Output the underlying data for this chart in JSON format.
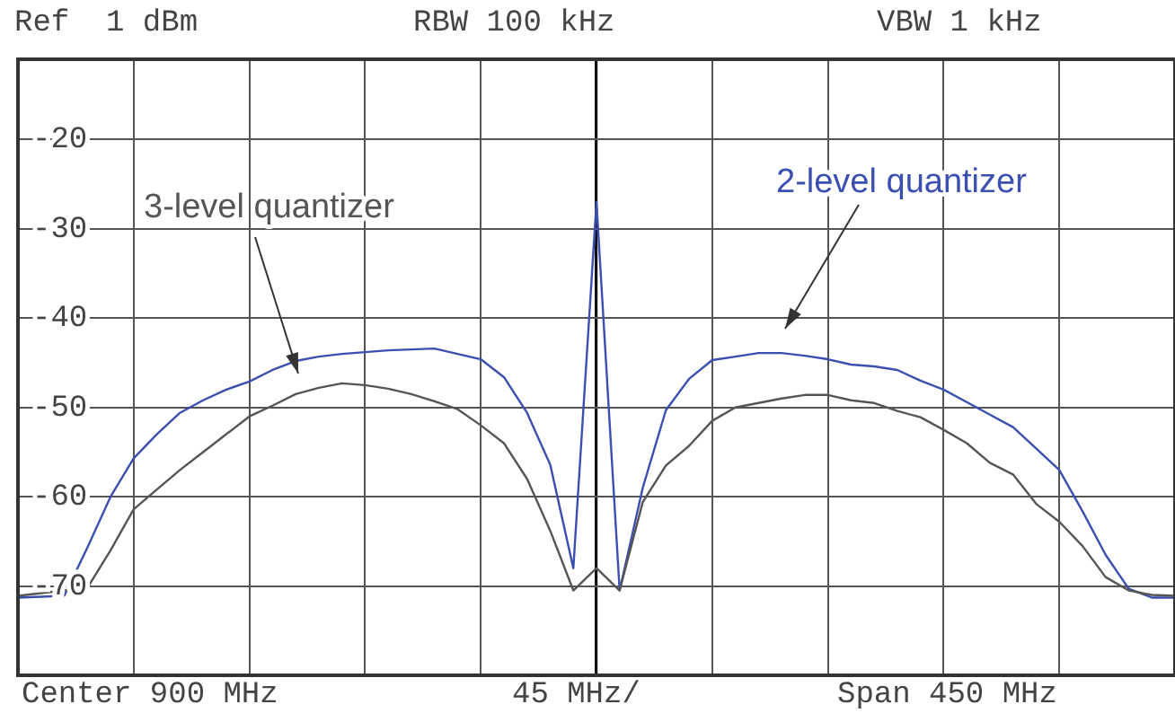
{
  "chart_data": {
    "type": "line",
    "annotations": [
      "Ref  1 dBm",
      "RBW 100 kHz",
      "VBW 1 kHz",
      "Center 900 MHz",
      "45 MHz/",
      "Span 450 MHz"
    ],
    "categories": [
      null,
      null,
      null,
      null,
      null,
      null,
      null,
      null,
      null,
      null,
      null,
      null,
      null,
      null,
      null,
      null,
      null,
      null,
      null,
      null,
      null,
      null,
      null,
      null,
      null,
      null,
      null,
      null,
      null,
      null,
      null,
      null,
      null,
      null,
      null,
      null,
      null,
      null,
      null,
      null,
      null,
      null,
      null,
      null,
      null,
      null,
      null,
      null,
      null,
      null,
      null
    ],
    "ylim": [
      -80,
      -11
    ],
    "yticks": [
      -70,
      -60,
      -50,
      -40,
      -30,
      -20
    ],
    "tick_labels": "y",
    "grid": true,
    "legend": false,
    "marker": "none",
    "line_style": "solid",
    "series": [
      {
        "name": "3-level quantizer",
        "color": "#555555",
        "values": [
          -71.1,
          -70.8,
          -70.5,
          -70.2,
          -66,
          -61.4,
          -59.2,
          -57,
          -55,
          -53,
          -51,
          -49.8,
          -48.5,
          -47.8,
          -47.3,
          -47.5,
          -47.9,
          -48.5,
          -49.3,
          -50.2,
          -52,
          -54,
          -58,
          -63.8,
          -70.5,
          -68,
          -70.5,
          -60.6,
          -56.5,
          -54.3,
          -51.5,
          -50,
          -49.5,
          -49,
          -48.6,
          -48.6,
          -49.2,
          -49.5,
          -50.4,
          -51.1,
          -52.5,
          -54,
          -56.2,
          -57.5,
          -60.8,
          -62.8,
          -65.5,
          -69,
          -70.5,
          -71,
          -71.1
        ]
      },
      {
        "name": "2-level quantizer",
        "color": "#3a4fb0",
        "values": [
          -71.3,
          -71.2,
          -71.1,
          -65.7,
          -60,
          -55.7,
          -53,
          -50.6,
          -49.2,
          -48,
          -47.1,
          -45.8,
          -44.8,
          -44.3,
          -44,
          -43.8,
          -43.6,
          -43.5,
          -43.4,
          -44,
          -44.6,
          -46.6,
          -50.6,
          -56.4,
          -68,
          -27,
          -70.5,
          -59,
          -50.3,
          -46.8,
          -44.7,
          -44.3,
          -43.9,
          -43.9,
          -44.2,
          -44.6,
          -45.2,
          -45.4,
          -45.8,
          -47,
          -48,
          -49.4,
          -50.8,
          -52.2,
          -54.6,
          -57,
          -61.6,
          -66.5,
          -70.3,
          -71.3,
          -71.3
        ]
      }
    ]
  }
}
